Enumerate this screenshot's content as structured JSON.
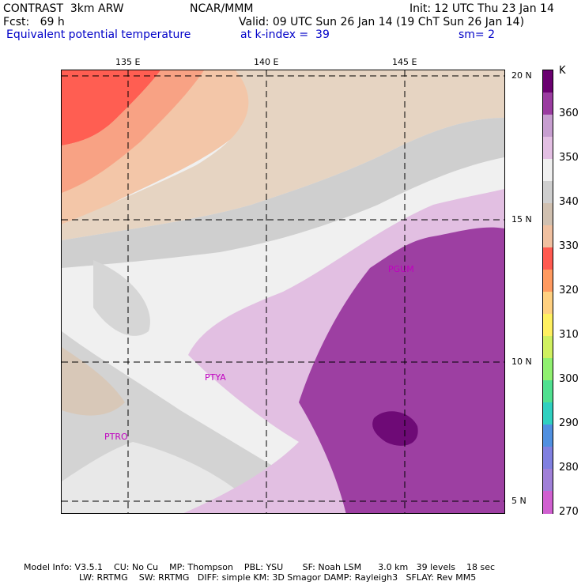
{
  "header": {
    "line1_left": "CONTRAST  3km ARW",
    "line1_center": "NCAR/MMM",
    "line1_right": "Init: 12 UTC Thu 23 Jan 14",
    "line2_left": "Fcst:   69 h",
    "line2_right": "Valid: 09 UTC Sun 26 Jan 14 (19 ChT Sun 26 Jan 14)",
    "line3_left": "Equivalent potential temperature",
    "line3_center": "at k-index =  39",
    "line3_right": "sm= 2"
  },
  "axes": {
    "lon_labels": [
      "135 E",
      "140 E",
      "145 E"
    ],
    "lat_labels": [
      "20 N",
      "15 N",
      "10 N",
      "5 N"
    ]
  },
  "stations": [
    "PGUM",
    "PTYA",
    "PTRO"
  ],
  "colorbar": {
    "unit": "K",
    "ticks": [
      "360",
      "350",
      "340",
      "330",
      "320",
      "310",
      "300",
      "290",
      "280",
      "270"
    ],
    "colors": [
      "#6a0070",
      "#9a3ca0",
      "#c79ed0",
      "#e3bfe3",
      "#f0f0f0",
      "#cfcfcf",
      "#d0c0b0",
      "#f0c0a0",
      "#ff5a50",
      "#ff9a60",
      "#ffd080",
      "#fff060",
      "#d0f060",
      "#90f070",
      "#50e090",
      "#30d0c0",
      "#5090e0",
      "#8080e0",
      "#a080d8",
      "#d060d0"
    ]
  },
  "footer": {
    "line1": "Model Info: V3.5.1    CU: No Cu    MP: Thompson    PBL: YSU       SF: Noah LSM      3.0 km   39 levels    18 sec",
    "line2": "LW: RRTMG    SW: RRTMG   DIFF: simple KM: 3D Smagor DAMP: Rayleigh3   SFLAY: Rev MM5"
  }
}
